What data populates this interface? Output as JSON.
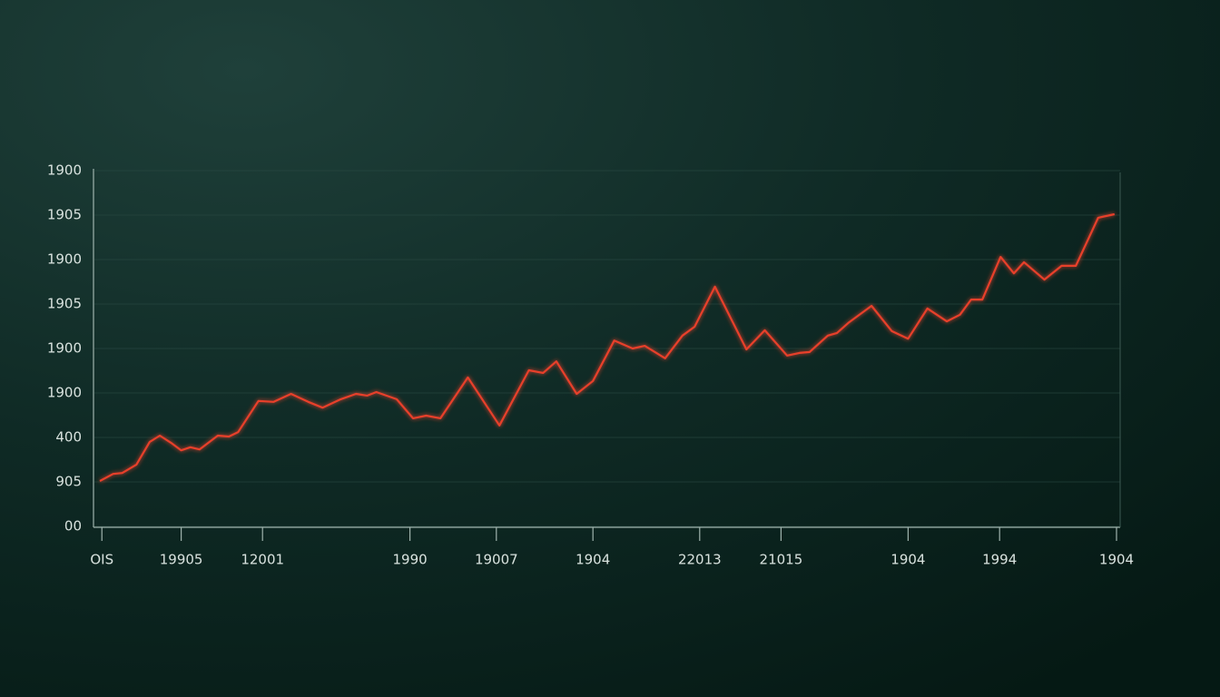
{
  "chart_data": {
    "type": "line",
    "xlim": [
      0,
      100
    ],
    "ylim": [
      0,
      8
    ],
    "xticks": [
      {
        "value": 0.2,
        "label": "OIS"
      },
      {
        "value": 8,
        "label": "19905"
      },
      {
        "value": 16,
        "label": "12001"
      },
      {
        "value": 30.5,
        "label": "1990"
      },
      {
        "value": 39,
        "label": "19007"
      },
      {
        "value": 48.5,
        "label": "1904"
      },
      {
        "value": 59,
        "label": "22013"
      },
      {
        "value": 67,
        "label": "21015"
      },
      {
        "value": 79.5,
        "label": "1904"
      },
      {
        "value": 88.5,
        "label": "1994"
      },
      {
        "value": 100,
        "label": "1904"
      }
    ],
    "yticks": [
      {
        "value": 0,
        "label": "00"
      },
      {
        "value": 1,
        "label": "905"
      },
      {
        "value": 2,
        "label": "400"
      },
      {
        "value": 3,
        "label": "1900"
      },
      {
        "value": 4,
        "label": "1900"
      },
      {
        "value": 5,
        "label": "1905"
      },
      {
        "value": 6,
        "label": "1900"
      },
      {
        "value": 7,
        "label": "1905"
      },
      {
        "value": 8,
        "label": "1900"
      }
    ],
    "grid": true,
    "series": [
      {
        "color": "#e8402c",
        "x": [
          0,
          1.3,
          2.2,
          3.6,
          4.9,
          5.9,
          7.0,
          8.0,
          8.9,
          9.8,
          11.6,
          12.7,
          13.6,
          15.6,
          17.1,
          18.8,
          20.5,
          21.9,
          23.7,
          25.2,
          26.3,
          27.2,
          29.2,
          30.8,
          32.1,
          33.5,
          36.2,
          39.3,
          42.2,
          43.6,
          44.9,
          46.9,
          48.5,
          50.6,
          52.4,
          53.6,
          55.6,
          57.3,
          58.5,
          60.5,
          63.6,
          65.4,
          67.6,
          68.8,
          69.8,
          71.6,
          72.5,
          73.7,
          75.9,
          77.9,
          79.5,
          81.4,
          83.3,
          84.6,
          85.7,
          86.8,
          88.6,
          89.9,
          90.9,
          92.9,
          94.6,
          96.0,
          98.2,
          99.8
        ],
        "values": [
          1.02,
          1.18,
          1.2,
          1.39,
          1.9,
          2.04,
          1.88,
          1.71,
          1.78,
          1.73,
          2.04,
          2.02,
          2.12,
          2.82,
          2.8,
          2.98,
          2.8,
          2.67,
          2.86,
          2.98,
          2.94,
          3.02,
          2.86,
          2.43,
          2.49,
          2.43,
          3.35,
          2.27,
          3.51,
          3.45,
          3.71,
          2.98,
          3.27,
          4.18,
          4.0,
          4.06,
          3.78,
          4.29,
          4.49,
          5.39,
          3.98,
          4.41,
          3.84,
          3.9,
          3.92,
          4.29,
          4.35,
          4.59,
          4.96,
          4.39,
          4.22,
          4.9,
          4.61,
          4.76,
          5.1,
          5.1,
          6.06,
          5.69,
          5.94,
          5.55,
          5.86,
          5.86,
          6.94,
          7.02
        ]
      }
    ]
  }
}
